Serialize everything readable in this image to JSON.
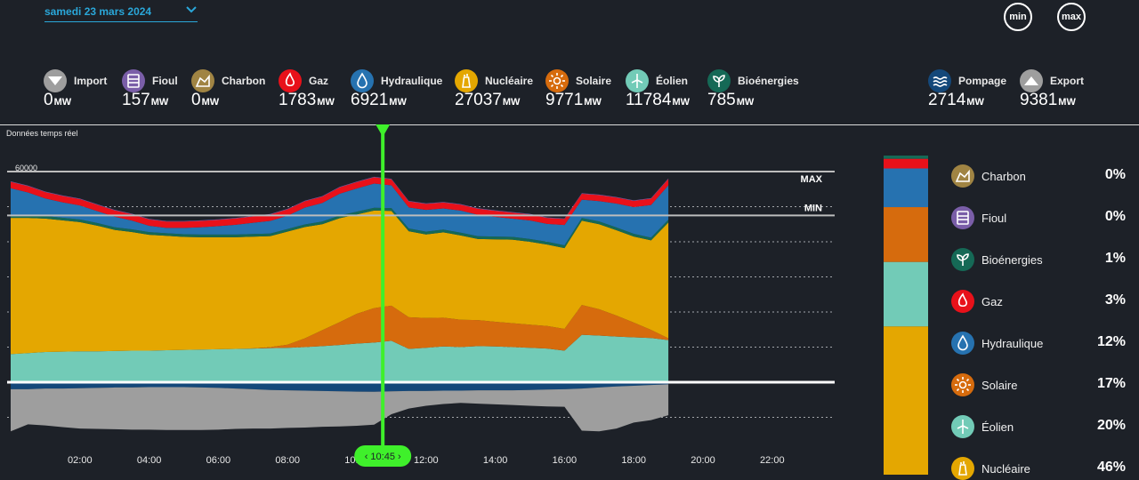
{
  "date_selector": {
    "label": "samedi 23 mars 2024"
  },
  "buttons": {
    "min": "min",
    "max": "max"
  },
  "unit": "MW",
  "energies": [
    {
      "key": "import",
      "name": "Import",
      "value": "0",
      "color": "#9e9e9e",
      "icon": "chevron-down-icon"
    },
    {
      "key": "fioul",
      "name": "Fioul",
      "value": "157",
      "color": "#7a5ea8",
      "icon": "oil-drum-icon"
    },
    {
      "key": "charbon",
      "name": "Charbon",
      "value": "0",
      "color": "#a08443",
      "icon": "coal-icon"
    },
    {
      "key": "gaz",
      "name": "Gaz",
      "value": "1783",
      "color": "#e8111a",
      "icon": "flame-icon"
    },
    {
      "key": "hydraulique",
      "name": "Hydraulique",
      "value": "6921",
      "color": "#2672b0",
      "icon": "water-drop-icon"
    },
    {
      "key": "nucleaire",
      "name": "Nucléaire",
      "value": "27037",
      "color": "#e4a701",
      "icon": "nuclear-plant-icon"
    },
    {
      "key": "solaire",
      "name": "Solaire",
      "value": "9771",
      "color": "#d66b0d",
      "icon": "sun-icon"
    },
    {
      "key": "eolien",
      "name": "Éolien",
      "value": "11784",
      "color": "#72cbb7",
      "icon": "wind-turbine-icon"
    },
    {
      "key": "bioenergies",
      "name": "Bioénergies",
      "value": "785",
      "color": "#156956",
      "icon": "leaf-icon"
    },
    {
      "key": "pompage",
      "name": "Pompage",
      "value": "2714",
      "color": "#14487a",
      "icon": "waves-icon"
    },
    {
      "key": "export",
      "name": "Export",
      "value": "9381",
      "color": "#9e9e9e",
      "icon": "chevron-up-icon"
    }
  ],
  "realtime_label": "Données temps réel",
  "cursor_label": "10:45",
  "legend": [
    {
      "name": "Charbon",
      "pct": "0%",
      "color": "#a08443",
      "icon": "coal-icon"
    },
    {
      "name": "Fioul",
      "pct": "0%",
      "color": "#7a5ea8",
      "icon": "oil-drum-icon"
    },
    {
      "name": "Bioénergies",
      "pct": "1%",
      "color": "#156956",
      "icon": "leaf-icon"
    },
    {
      "name": "Gaz",
      "pct": "3%",
      "color": "#e8111a",
      "icon": "flame-icon"
    },
    {
      "name": "Hydraulique",
      "pct": "12%",
      "color": "#2672b0",
      "icon": "water-drop-icon"
    },
    {
      "name": "Solaire",
      "pct": "17%",
      "color": "#d66b0d",
      "icon": "sun-icon"
    },
    {
      "name": "Éolien",
      "pct": "20%",
      "color": "#72cbb7",
      "icon": "wind-turbine-icon"
    },
    {
      "name": "Nucléaire",
      "pct": "46%",
      "color": "#e4a701",
      "icon": "nuclear-plant-icon"
    }
  ],
  "chart_data": {
    "type": "area",
    "stacked": true,
    "y_ticks": [
      60000,
      50000,
      40000,
      30000,
      20000,
      10000,
      0,
      -10000
    ],
    "ylim": [
      -15000,
      62000
    ],
    "x_range_hours": [
      0,
      24
    ],
    "x_ticks": [
      "02:00",
      "04:00",
      "06:00",
      "08:00",
      "10:00",
      "12:00",
      "14:00",
      "16:00",
      "18:00",
      "20:00",
      "22:00"
    ],
    "max_line": {
      "label": "MAX",
      "value": 60000
    },
    "min_line": {
      "label": "MIN",
      "value": 47500
    },
    "cursor_time_hours": 10.75,
    "x_hours": [
      0,
      0.5,
      1,
      1.5,
      2,
      2.5,
      3,
      3.5,
      4,
      4.5,
      5,
      5.5,
      6,
      6.5,
      7,
      7.5,
      8,
      8.5,
      9,
      9.5,
      10,
      10.5,
      11,
      11.5,
      12,
      12.5,
      13,
      13.5,
      14,
      14.5,
      15,
      15.5,
      16,
      16.5,
      17,
      17.5,
      18,
      18.5,
      19
    ],
    "series": [
      {
        "name": "Éolien",
        "color": "#72cbb7",
        "values": [
          8000,
          8300,
          8600,
          8700,
          8800,
          8800,
          8900,
          9000,
          9000,
          9100,
          9200,
          9300,
          9400,
          9500,
          9600,
          9700,
          9800,
          10000,
          10300,
          10600,
          11000,
          11300,
          11800,
          9500,
          9800,
          10200,
          10000,
          10300,
          10200,
          10000,
          9800,
          9600,
          9000,
          13500,
          13300,
          13000,
          12800,
          12600,
          12000
        ]
      },
      {
        "name": "Solaire",
        "color": "#d66b0d",
        "values": [
          0,
          0,
          0,
          0,
          0,
          0,
          0,
          0,
          0,
          0,
          0,
          0,
          0,
          0,
          50,
          300,
          900,
          2500,
          4500,
          6500,
          8500,
          9800,
          10000,
          9000,
          8500,
          8200,
          7800,
          7400,
          7000,
          6800,
          6600,
          6400,
          6200,
          8500,
          7500,
          6000,
          4200,
          2300,
          500
        ]
      },
      {
        "name": "Nucléaire",
        "color": "#e4a701",
        "values": [
          38800,
          38500,
          38000,
          37400,
          36800,
          35800,
          34500,
          33800,
          33000,
          32600,
          32200,
          32000,
          31900,
          31800,
          31800,
          31600,
          32200,
          31700,
          30200,
          29600,
          28300,
          27800,
          27000,
          24500,
          23800,
          24300,
          24000,
          23100,
          23500,
          23800,
          23600,
          23200,
          23000,
          24000,
          24200,
          24300,
          24500,
          25500,
          33000
        ]
      },
      {
        "name": "Bioénergies",
        "color": "#156956",
        "values": [
          750,
          750,
          750,
          750,
          750,
          750,
          750,
          750,
          750,
          750,
          750,
          750,
          750,
          750,
          750,
          750,
          750,
          750,
          760,
          770,
          780,
          785,
          785,
          785,
          785,
          785,
          785,
          785,
          785,
          785,
          785,
          785,
          785,
          785,
          785,
          785,
          785,
          785,
          785
        ]
      },
      {
        "name": "Hydraulique",
        "color": "#2672b0",
        "values": [
          7700,
          6500,
          5000,
          4400,
          4000,
          3400,
          3000,
          2500,
          1800,
          1500,
          1800,
          2100,
          2400,
          2800,
          3200,
          3600,
          3800,
          4800,
          5300,
          6200,
          6600,
          6900,
          6500,
          6000,
          6200,
          6000,
          6300,
          6100,
          5600,
          5200,
          5300,
          5100,
          5800,
          5200,
          5800,
          6800,
          7600,
          9300,
          9800
        ]
      },
      {
        "name": "Gaz",
        "color": "#e8111a",
        "values": [
          1800,
          1800,
          1800,
          1800,
          1800,
          1800,
          1800,
          1800,
          1800,
          1800,
          1800,
          1800,
          1800,
          1800,
          1800,
          1800,
          1800,
          1800,
          1800,
          1800,
          1800,
          1783,
          1700,
          1700,
          1700,
          1700,
          1700,
          1700,
          1700,
          1700,
          1700,
          1700,
          1700,
          1700,
          1700,
          1700,
          1750,
          1800,
          1800
        ]
      },
      {
        "name": "Fioul",
        "color": "#7a5ea8",
        "values": [
          157,
          157,
          157,
          157,
          157,
          157,
          157,
          157,
          157,
          157,
          157,
          157,
          157,
          157,
          157,
          157,
          157,
          157,
          157,
          157,
          157,
          157,
          157,
          157,
          157,
          157,
          157,
          157,
          157,
          157,
          157,
          157,
          157,
          157,
          157,
          157,
          157,
          157,
          157
        ]
      },
      {
        "name": "Pompage",
        "color": "#14487a",
        "values": [
          -2000,
          -2000,
          -1800,
          -1800,
          -1700,
          -1600,
          -1500,
          -1500,
          -1400,
          -1400,
          -1400,
          -1500,
          -1600,
          -1800,
          -2000,
          -2200,
          -2300,
          -2400,
          -2500,
          -2600,
          -2700,
          -2714,
          -2600,
          -2500,
          -2500,
          -2400,
          -2400,
          -2300,
          -2300,
          -2300,
          -2200,
          -2100,
          -2000,
          -1800,
          -1500,
          -1200,
          -1000,
          -800,
          -600
        ]
      },
      {
        "name": "Export",
        "color": "#9e9e9e",
        "values": [
          -12000,
          -10000,
          -10500,
          -11000,
          -11500,
          -11700,
          -11900,
          -12000,
          -12100,
          -12200,
          -12200,
          -12100,
          -11900,
          -11500,
          -11200,
          -11000,
          -10700,
          -10500,
          -10200,
          -10000,
          -9700,
          -9381,
          -6500,
          -5000,
          -4200,
          -3800,
          -3500,
          -3800,
          -4000,
          -4200,
          -4500,
          -4800,
          -5000,
          -12000,
          -12500,
          -12000,
          -10500,
          -10000,
          -8800
        ]
      }
    ],
    "stack_bar": [
      {
        "name": "Nucléaire",
        "pct": 46,
        "color": "#e4a701"
      },
      {
        "name": "Éolien",
        "pct": 20,
        "color": "#72cbb7"
      },
      {
        "name": "Solaire",
        "pct": 17,
        "color": "#d66b0d"
      },
      {
        "name": "Hydraulique",
        "pct": 12,
        "color": "#2672b0"
      },
      {
        "name": "Gaz",
        "pct": 3,
        "color": "#e8111a"
      },
      {
        "name": "Bioénergies",
        "pct": 1,
        "color": "#156956"
      },
      {
        "name": "Fioul",
        "pct": 0,
        "color": "#7a5ea8"
      },
      {
        "name": "Charbon",
        "pct": 0,
        "color": "#a08443"
      }
    ]
  }
}
